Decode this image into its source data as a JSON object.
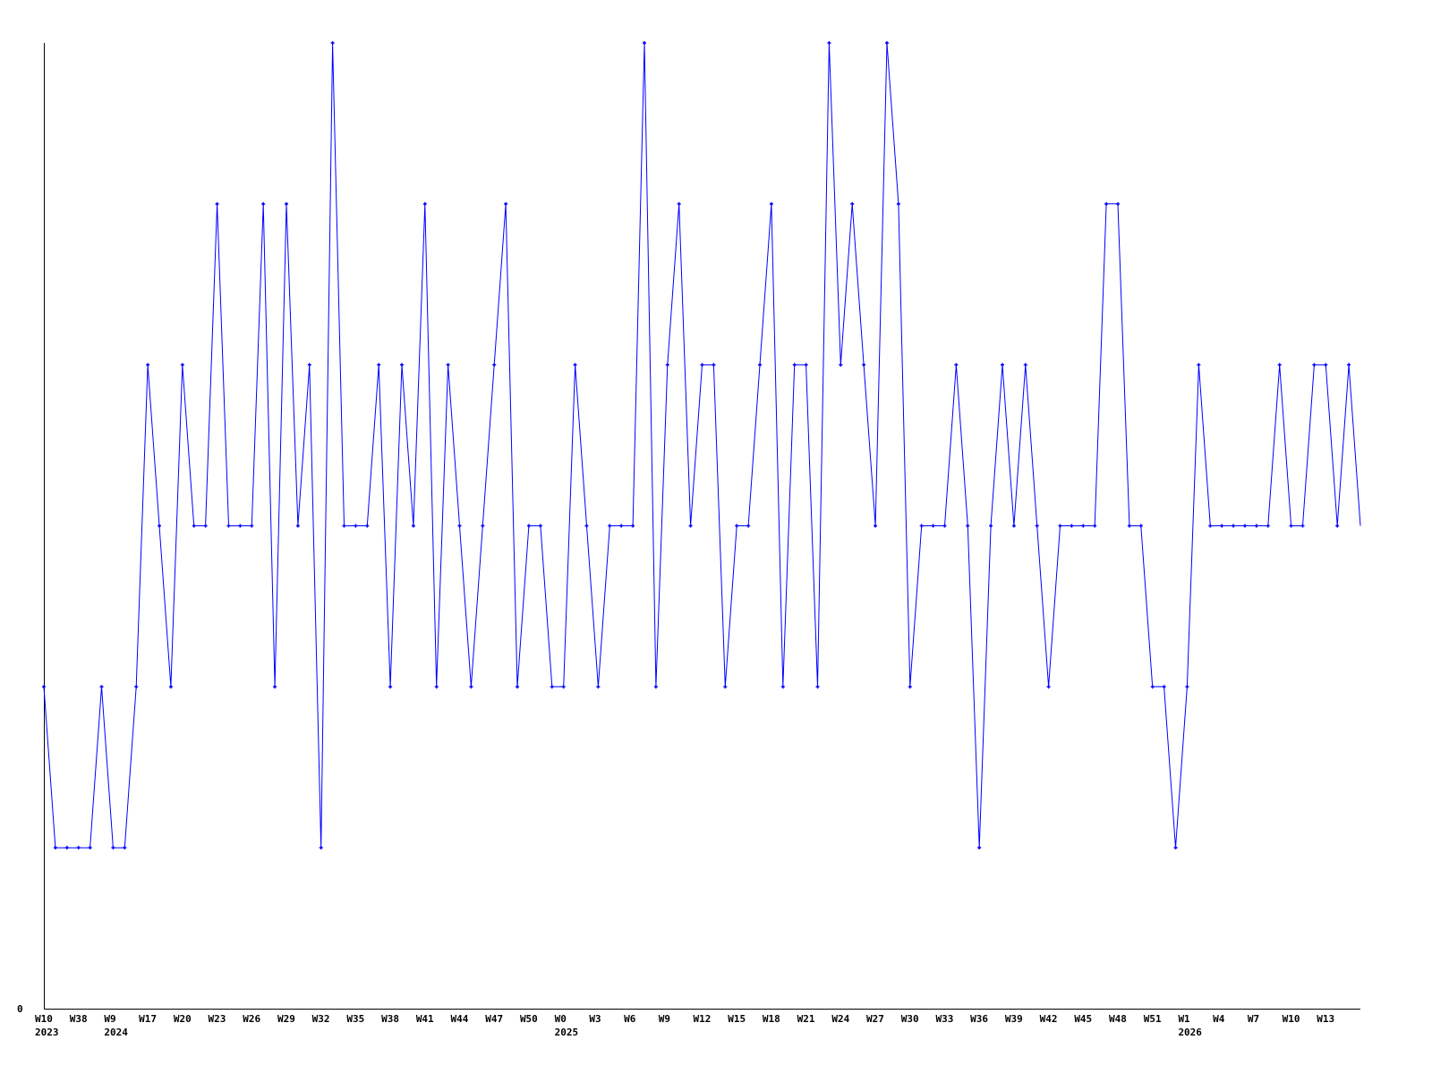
{
  "chart_data": {
    "type": "line",
    "title": "",
    "xlabel": "",
    "ylabel": "",
    "ylim": [
      0,
      6
    ],
    "y_tick_labels": [
      "0"
    ],
    "grid": false,
    "legend": "none",
    "line_color": "#0000ff",
    "axis_color": "#000000",
    "x_tick_labels": [
      "W10",
      "W38",
      "W9",
      "W17",
      "W20",
      "W23",
      "W26",
      "W29",
      "W32",
      "W35",
      "W38",
      "W41",
      "W44",
      "W47",
      "W50",
      "W0",
      "W3",
      "W6",
      "W9",
      "W12",
      "W15",
      "W18",
      "W21",
      "W24",
      "W27",
      "W30",
      "W33",
      "W36",
      "W39",
      "W42",
      "W45",
      "W48",
      "W51",
      "W1",
      "W4",
      "W7",
      "W10",
      "W13"
    ],
    "year_labels": [
      {
        "label": "2023",
        "tick": 0
      },
      {
        "label": "2024",
        "tick": 2
      },
      {
        "label": "2025",
        "tick": 15
      },
      {
        "label": "2026",
        "tick": 33
      }
    ],
    "points_per_tick": 3,
    "values": [
      2,
      1,
      1,
      1,
      1,
      2,
      1,
      1,
      2,
      4,
      3,
      2,
      4,
      3,
      3,
      5,
      3,
      3,
      3,
      5,
      2,
      5,
      3,
      4,
      1,
      6,
      3,
      3,
      3,
      4,
      2,
      4,
      3,
      5,
      2,
      4,
      3,
      2,
      3,
      4,
      5,
      2,
      3,
      3,
      2,
      2,
      4,
      3,
      2,
      3,
      3,
      3,
      6,
      2,
      4,
      5,
      3,
      4,
      4,
      2,
      3,
      3,
      4,
      5,
      2,
      4,
      4,
      2,
      6,
      4,
      5,
      4,
      3,
      6,
      5,
      2,
      3,
      3,
      3,
      4,
      3,
      1,
      3,
      4,
      3,
      4,
      3,
      2,
      3,
      3,
      3,
      3,
      5,
      5,
      3,
      3,
      2,
      2,
      1,
      2,
      4,
      3,
      3,
      3,
      3,
      3,
      3,
      4,
      3,
      3,
      4,
      4,
      3,
      4,
      3
    ]
  }
}
